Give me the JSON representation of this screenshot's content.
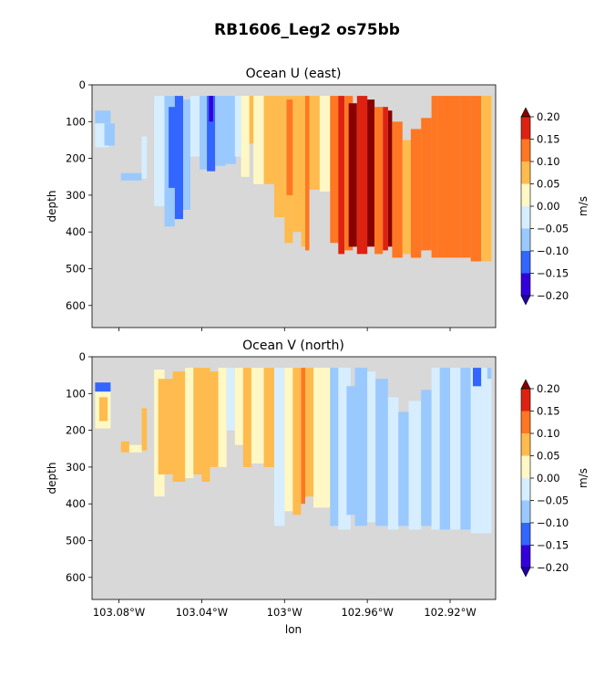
{
  "figure": {
    "suptitle": "RB1606_Leg2 os75bb"
  },
  "chart_data": [
    {
      "type": "heatmap",
      "title": "Ocean U (east)",
      "xlabel": "",
      "ylabel": "depth",
      "x_ticks": [
        "103.08°W",
        "103.04°W",
        "103°W",
        "102.96°W",
        "102.92°W"
      ],
      "x_tick_values": [
        -103.08,
        -103.04,
        -103.0,
        -102.96,
        -102.92
      ],
      "y_ticks": [
        "0",
        "100",
        "200",
        "300",
        "400",
        "500",
        "600"
      ],
      "y_tick_values": [
        0,
        100,
        200,
        300,
        400,
        500,
        600
      ],
      "xlim": [
        -103.093,
        -102.898
      ],
      "ylim": [
        660,
        0
      ],
      "y_inverted": true,
      "missing_color": "#d8d8d8",
      "colorbar": {
        "label": "m/s",
        "ticks": [
          "0.20",
          "0.15",
          "0.10",
          "0.05",
          "0.00",
          "−0.05",
          "−0.10",
          "−0.15",
          "−0.20"
        ],
        "levels": [
          -0.2,
          -0.15,
          -0.1,
          -0.05,
          0.0,
          0.05,
          0.1,
          0.15,
          0.2
        ],
        "colors": [
          "#3300dd",
          "#3366ff",
          "#99c9ff",
          "#d6eeff",
          "#fff8c4",
          "#ffbb4d",
          "#ff7722",
          "#dd2211"
        ],
        "under_color": "#2200aa",
        "over_color": "#880000"
      },
      "bands": [
        {
          "x0": -103.0915,
          "x1": -103.084,
          "zmin": 70,
          "zmax": 105,
          "value": -0.09
        },
        {
          "x0": -103.0915,
          "x1": -103.085,
          "zmin": 105,
          "zmax": 170,
          "value": -0.03
        },
        {
          "x0": -103.087,
          "x1": -103.082,
          "zmin": 105,
          "zmax": 165,
          "value": -0.08
        },
        {
          "x0": -103.079,
          "x1": -103.069,
          "zmin": 240,
          "zmax": 260,
          "value": -0.08
        },
        {
          "x0": -103.069,
          "x1": -103.0665,
          "zmin": 140,
          "zmax": 255,
          "value": -0.03
        },
        {
          "x0": -103.063,
          "x1": -103.058,
          "zmin": 30,
          "zmax": 330,
          "value": -0.03
        },
        {
          "x0": -103.058,
          "x1": -103.053,
          "zmin": 30,
          "zmax": 385,
          "value": -0.08
        },
        {
          "x0": -103.056,
          "x1": -103.0525,
          "zmin": 60,
          "zmax": 280,
          "value": -0.13
        },
        {
          "x0": -103.053,
          "x1": -103.049,
          "zmin": 30,
          "zmax": 365,
          "value": -0.11
        },
        {
          "x0": -103.049,
          "x1": -103.0455,
          "zmin": 40,
          "zmax": 340,
          "value": -0.06
        },
        {
          "x0": -103.0455,
          "x1": -103.0405,
          "zmin": 30,
          "zmax": 195,
          "value": -0.02
        },
        {
          "x0": -103.041,
          "x1": -103.037,
          "zmin": 30,
          "zmax": 230,
          "value": -0.09
        },
        {
          "x0": -103.0375,
          "x1": -103.0335,
          "zmin": 30,
          "zmax": 235,
          "value": -0.14
        },
        {
          "x0": -103.0365,
          "x1": -103.0345,
          "zmin": 30,
          "zmax": 100,
          "value": -0.18
        },
        {
          "x0": -103.0335,
          "x1": -103.0285,
          "zmin": 30,
          "zmax": 220,
          "value": -0.08
        },
        {
          "x0": -103.0285,
          "x1": -103.0235,
          "zmin": 30,
          "zmax": 215,
          "value": -0.07
        },
        {
          "x0": -103.024,
          "x1": -103.021,
          "zmin": 30,
          "zmax": 195,
          "value": -0.02
        },
        {
          "x0": -103.021,
          "x1": -103.017,
          "zmin": 30,
          "zmax": 250,
          "value": 0.03
        },
        {
          "x0": -103.017,
          "x1": -103.014,
          "zmin": 30,
          "zmax": 160,
          "value": 0.07
        },
        {
          "x0": -103.015,
          "x1": -103.01,
          "zmin": 30,
          "zmax": 270,
          "value": 0.03
        },
        {
          "x0": -103.01,
          "x1": -103.005,
          "zmin": 30,
          "zmax": 270,
          "value": 0.07
        },
        {
          "x0": -103.005,
          "x1": -103.0,
          "zmin": 30,
          "zmax": 360,
          "value": 0.08
        },
        {
          "x0": -103.0,
          "x1": -102.996,
          "zmin": 30,
          "zmax": 430,
          "value": 0.07
        },
        {
          "x0": -102.999,
          "x1": -102.996,
          "zmin": 40,
          "zmax": 300,
          "value": 0.12
        },
        {
          "x0": -102.996,
          "x1": -102.992,
          "zmin": 30,
          "zmax": 400,
          "value": 0.08
        },
        {
          "x0": -102.992,
          "x1": -102.988,
          "zmin": 30,
          "zmax": 440,
          "value": 0.07
        },
        {
          "x0": -102.99,
          "x1": -102.988,
          "zmin": 30,
          "zmax": 450,
          "value": 0.12
        },
        {
          "x0": -102.988,
          "x1": -102.983,
          "zmin": 30,
          "zmax": 285,
          "value": 0.07
        },
        {
          "x0": -102.983,
          "x1": -102.978,
          "zmin": 30,
          "zmax": 290,
          "value": 0.03
        },
        {
          "x0": -102.978,
          "x1": -102.974,
          "zmin": 30,
          "zmax": 430,
          "value": 0.12
        },
        {
          "x0": -102.974,
          "x1": -102.971,
          "zmin": 30,
          "zmax": 460,
          "value": 0.17
        },
        {
          "x0": -102.971,
          "x1": -102.967,
          "zmin": 30,
          "zmax": 450,
          "value": 0.12
        },
        {
          "x0": -102.969,
          "x1": -102.965,
          "zmin": 50,
          "zmax": 440,
          "value": 0.21
        },
        {
          "x0": -102.965,
          "x1": -102.96,
          "zmin": 30,
          "zmax": 460,
          "value": 0.17
        },
        {
          "x0": -102.96,
          "x1": -102.9565,
          "zmin": 40,
          "zmax": 440,
          "value": 0.21
        },
        {
          "x0": -102.9565,
          "x1": -102.9525,
          "zmin": 60,
          "zmax": 460,
          "value": 0.12
        },
        {
          "x0": -102.9525,
          "x1": -102.95,
          "zmin": 60,
          "zmax": 450,
          "value": 0.17
        },
        {
          "x0": -102.95,
          "x1": -102.948,
          "zmin": 70,
          "zmax": 440,
          "value": 0.21
        },
        {
          "x0": -102.948,
          "x1": -102.943,
          "zmin": 100,
          "zmax": 470,
          "value": 0.12
        },
        {
          "x0": -102.943,
          "x1": -102.939,
          "zmin": 150,
          "zmax": 460,
          "value": 0.07
        },
        {
          "x0": -102.939,
          "x1": -102.934,
          "zmin": 120,
          "zmax": 470,
          "value": 0.12
        },
        {
          "x0": -102.934,
          "x1": -102.929,
          "zmin": 90,
          "zmax": 450,
          "value": 0.12
        },
        {
          "x0": -102.929,
          "x1": -102.926,
          "zmin": 30,
          "zmax": 470,
          "value": 0.12
        },
        {
          "x0": -102.926,
          "x1": -102.92,
          "zmin": 30,
          "zmax": 470,
          "value": 0.13
        },
        {
          "x0": -102.92,
          "x1": -102.915,
          "zmin": 30,
          "zmax": 470,
          "value": 0.12
        },
        {
          "x0": -102.915,
          "x1": -102.91,
          "zmin": 30,
          "zmax": 470,
          "value": 0.14
        },
        {
          "x0": -102.91,
          "x1": -102.905,
          "zmin": 30,
          "zmax": 480,
          "value": 0.12
        },
        {
          "x0": -102.905,
          "x1": -102.9,
          "zmin": 30,
          "zmax": 480,
          "value": 0.08
        }
      ]
    },
    {
      "type": "heatmap",
      "title": "Ocean V (north)",
      "xlabel": "lon",
      "ylabel": "depth",
      "x_ticks": [
        "103.08°W",
        "103.04°W",
        "103°W",
        "102.96°W",
        "102.92°W"
      ],
      "x_tick_values": [
        -103.08,
        -103.04,
        -103.0,
        -102.96,
        -102.92
      ],
      "y_ticks": [
        "0",
        "100",
        "200",
        "300",
        "400",
        "500",
        "600"
      ],
      "y_tick_values": [
        0,
        100,
        200,
        300,
        400,
        500,
        600
      ],
      "xlim": [
        -103.093,
        -102.898
      ],
      "ylim": [
        660,
        0
      ],
      "y_inverted": true,
      "missing_color": "#d8d8d8",
      "colorbar": {
        "label": "m/s",
        "ticks": [
          "0.20",
          "0.15",
          "0.10",
          "0.05",
          "0.00",
          "−0.05",
          "−0.10",
          "−0.15",
          "−0.20"
        ],
        "levels": [
          -0.2,
          -0.15,
          -0.1,
          -0.05,
          0.0,
          0.05,
          0.1,
          0.15,
          0.2
        ],
        "colors": [
          "#3300dd",
          "#3366ff",
          "#99c9ff",
          "#d6eeff",
          "#fff8c4",
          "#ffbb4d",
          "#ff7722",
          "#dd2211"
        ],
        "under_color": "#2200aa",
        "over_color": "#880000"
      },
      "bands": [
        {
          "x0": -103.0915,
          "x1": -103.084,
          "zmin": 70,
          "zmax": 95,
          "value": -0.13
        },
        {
          "x0": -103.0915,
          "x1": -103.084,
          "zmin": 95,
          "zmax": 195,
          "value": 0.03
        },
        {
          "x0": -103.0895,
          "x1": -103.0855,
          "zmin": 110,
          "zmax": 175,
          "value": 0.07
        },
        {
          "x0": -103.079,
          "x1": -103.075,
          "zmin": 230,
          "zmax": 260,
          "value": 0.07
        },
        {
          "x0": -103.075,
          "x1": -103.069,
          "zmin": 240,
          "zmax": 260,
          "value": 0.03
        },
        {
          "x0": -103.069,
          "x1": -103.0665,
          "zmin": 140,
          "zmax": 255,
          "value": 0.07
        },
        {
          "x0": -103.063,
          "x1": -103.058,
          "zmin": 35,
          "zmax": 380,
          "value": 0.03
        },
        {
          "x0": -103.061,
          "x1": -103.054,
          "zmin": 60,
          "zmax": 320,
          "value": 0.07
        },
        {
          "x0": -103.054,
          "x1": -103.048,
          "zmin": 40,
          "zmax": 340,
          "value": 0.08
        },
        {
          "x0": -103.048,
          "x1": -103.044,
          "zmin": 30,
          "zmax": 330,
          "value": 0.03
        },
        {
          "x0": -103.044,
          "x1": -103.04,
          "zmin": 30,
          "zmax": 320,
          "value": 0.07
        },
        {
          "x0": -103.04,
          "x1": -103.036,
          "zmin": 30,
          "zmax": 340,
          "value": 0.08
        },
        {
          "x0": -103.036,
          "x1": -103.032,
          "zmin": 40,
          "zmax": 300,
          "value": 0.07
        },
        {
          "x0": -103.032,
          "x1": -103.028,
          "zmin": 30,
          "zmax": 300,
          "value": 0.03
        },
        {
          "x0": -103.028,
          "x1": -103.024,
          "zmin": 30,
          "zmax": 200,
          "value": -0.02
        },
        {
          "x0": -103.024,
          "x1": -103.02,
          "zmin": 30,
          "zmax": 240,
          "value": 0.03
        },
        {
          "x0": -103.02,
          "x1": -103.016,
          "zmin": 30,
          "zmax": 300,
          "value": 0.07
        },
        {
          "x0": -103.016,
          "x1": -103.01,
          "zmin": 30,
          "zmax": 290,
          "value": 0.03
        },
        {
          "x0": -103.01,
          "x1": -103.005,
          "zmin": 30,
          "zmax": 300,
          "value": 0.07
        },
        {
          "x0": -103.005,
          "x1": -103.0,
          "zmin": 30,
          "zmax": 460,
          "value": -0.02
        },
        {
          "x0": -103.0,
          "x1": -102.996,
          "zmin": 30,
          "zmax": 420,
          "value": 0.03
        },
        {
          "x0": -102.996,
          "x1": -102.992,
          "zmin": 30,
          "zmax": 430,
          "value": 0.07
        },
        {
          "x0": -102.992,
          "x1": -102.99,
          "zmin": 30,
          "zmax": 400,
          "value": 0.12
        },
        {
          "x0": -102.99,
          "x1": -102.986,
          "zmin": 30,
          "zmax": 380,
          "value": 0.07
        },
        {
          "x0": -102.986,
          "x1": -102.978,
          "zmin": 30,
          "zmax": 410,
          "value": 0.03
        },
        {
          "x0": -102.978,
          "x1": -102.974,
          "zmin": 30,
          "zmax": 460,
          "value": -0.08
        },
        {
          "x0": -102.974,
          "x1": -102.968,
          "zmin": 30,
          "zmax": 470,
          "value": -0.02
        },
        {
          "x0": -102.97,
          "x1": -102.966,
          "zmin": 80,
          "zmax": 430,
          "value": -0.08
        },
        {
          "x0": -102.966,
          "x1": -102.96,
          "zmin": 30,
          "zmax": 460,
          "value": -0.07
        },
        {
          "x0": -102.96,
          "x1": -102.956,
          "zmin": 40,
          "zmax": 450,
          "value": -0.02
        },
        {
          "x0": -102.956,
          "x1": -102.95,
          "zmin": 60,
          "zmax": 460,
          "value": -0.08
        },
        {
          "x0": -102.95,
          "x1": -102.945,
          "zmin": 110,
          "zmax": 470,
          "value": -0.02
        },
        {
          "x0": -102.945,
          "x1": -102.94,
          "zmin": 150,
          "zmax": 460,
          "value": -0.08
        },
        {
          "x0": -102.94,
          "x1": -102.934,
          "zmin": 120,
          "zmax": 470,
          "value": -0.03
        },
        {
          "x0": -102.934,
          "x1": -102.929,
          "zmin": 90,
          "zmax": 460,
          "value": -0.07
        },
        {
          "x0": -102.929,
          "x1": -102.925,
          "zmin": 30,
          "zmax": 470,
          "value": -0.03
        },
        {
          "x0": -102.925,
          "x1": -102.92,
          "zmin": 30,
          "zmax": 470,
          "value": -0.08
        },
        {
          "x0": -102.92,
          "x1": -102.915,
          "zmin": 30,
          "zmax": 470,
          "value": -0.03
        },
        {
          "x0": -102.915,
          "x1": -102.91,
          "zmin": 30,
          "zmax": 470,
          "value": -0.07
        },
        {
          "x0": -102.91,
          "x1": -102.905,
          "zmin": 30,
          "zmax": 480,
          "value": -0.03
        },
        {
          "x0": -102.905,
          "x1": -102.9,
          "zmin": 30,
          "zmax": 480,
          "value": -0.02
        },
        {
          "x0": -102.909,
          "x1": -102.905,
          "zmin": 30,
          "zmax": 80,
          "value": -0.13
        },
        {
          "x0": -102.902,
          "x1": -102.9,
          "zmin": 30,
          "zmax": 60,
          "value": -0.08
        }
      ]
    }
  ]
}
